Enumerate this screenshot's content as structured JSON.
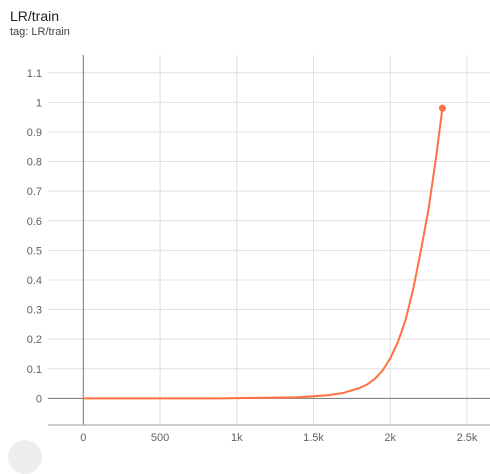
{
  "card": {
    "title": "LR/train",
    "tag": "tag: LR/train"
  },
  "chart_data": {
    "type": "line",
    "title": "LR/train",
    "xlabel": "",
    "ylabel": "",
    "xlim": [
      -230,
      2650
    ],
    "ylim": [
      -0.09,
      1.16
    ],
    "grid": true,
    "x_ticks": [
      0,
      500,
      1000,
      1500,
      2000,
      2500
    ],
    "x_tick_labels": [
      "0",
      "500",
      "1k",
      "1.5k",
      "2k",
      "2.5k"
    ],
    "y_ticks": [
      0,
      0.1,
      0.2,
      0.3,
      0.4,
      0.5,
      0.6,
      0.7,
      0.8,
      0.9,
      1,
      1.1
    ],
    "y_tick_labels": [
      "0",
      "0.1",
      "0.2",
      "0.3",
      "0.4",
      "0.5",
      "0.6",
      "0.7",
      "0.8",
      "0.9",
      "1",
      "1.1"
    ],
    "series": [
      {
        "color": "#ff7043",
        "x": [
          0,
          500,
          900,
          1000,
          1200,
          1400,
          1500,
          1600,
          1700,
          1800,
          1850,
          1900,
          1950,
          2000,
          2050,
          2100,
          2150,
          2200,
          2250,
          2300,
          2340
        ],
        "y": [
          0,
          0,
          0,
          0.001,
          0.002,
          0.004,
          0.007,
          0.011,
          0.019,
          0.035,
          0.047,
          0.066,
          0.094,
          0.135,
          0.19,
          0.265,
          0.37,
          0.5,
          0.64,
          0.82,
          0.98
        ]
      }
    ]
  }
}
